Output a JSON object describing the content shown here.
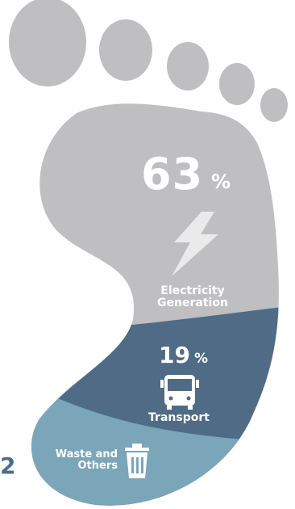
{
  "colors": {
    "electricity": "#bfbfc1",
    "transport": "#4f6b86",
    "waste": "#7ba5b8",
    "text": "#ffffff",
    "edge_number": "#4a6d8a"
  },
  "segments": [
    {
      "name": "electricity",
      "value": "63",
      "unit": "%",
      "label": "Electricity Generation",
      "icon": "lightning-bolt-icon"
    },
    {
      "name": "transport",
      "value": "19",
      "unit": "%",
      "label": "Transport",
      "icon": "bus-icon"
    },
    {
      "name": "waste",
      "label": "Waste and Others",
      "icon": "trash-bin-icon"
    }
  ],
  "edge_text": "2"
}
